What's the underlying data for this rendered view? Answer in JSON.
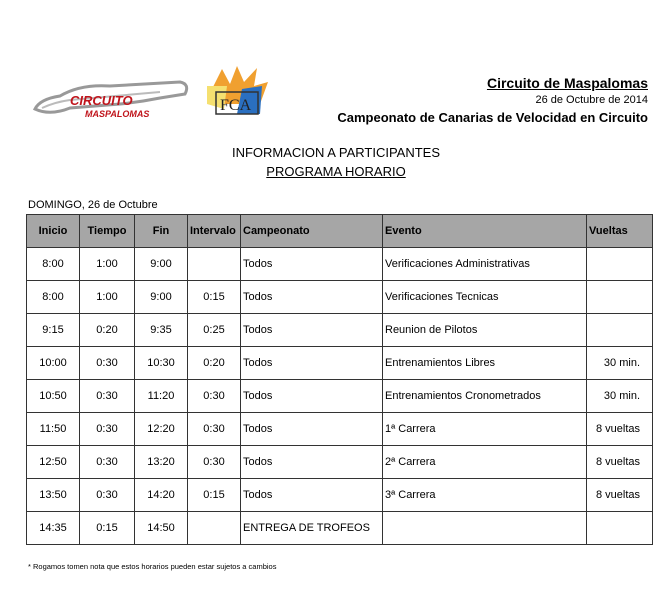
{
  "logos": {
    "circuit": "CIRCUITO MASPALOMAS",
    "federation": "FCA"
  },
  "header": {
    "title": "Circuito de Maspalomas",
    "date": "26 de Octubre de 2014",
    "championship": "Campeonato de Canarias de Velocidad en Circuito"
  },
  "heading": {
    "line1": "INFORMACION A PARTICIPANTES",
    "line2": "PROGRAMA HORARIO"
  },
  "day": "DOMINGO, 26 de Octubre",
  "table": {
    "columns": [
      "Inicio",
      "Tiempo",
      "Fin",
      "Intervalo",
      "Campeonato",
      "Evento",
      "Vueltas"
    ],
    "rows": [
      [
        "8:00",
        "1:00",
        "9:00",
        "",
        "Todos",
        "Verificaciones Administrativas",
        ""
      ],
      [
        "8:00",
        "1:00",
        "9:00",
        "0:15",
        "Todos",
        "Verificaciones Tecnicas",
        ""
      ],
      [
        "9:15",
        "0:20",
        "9:35",
        "0:25",
        "Todos",
        "Reunion de Pilotos",
        ""
      ],
      [
        "10:00",
        "0:30",
        "10:30",
        "0:20",
        "Todos",
        "Entrenamientos Libres",
        "30 min."
      ],
      [
        "10:50",
        "0:30",
        "11:20",
        "0:30",
        "Todos",
        "Entrenamientos Cronometrados",
        "30 min."
      ],
      [
        "11:50",
        "0:30",
        "12:20",
        "0:30",
        "Todos",
        "1ª Carrera",
        "8 vueltas"
      ],
      [
        "12:50",
        "0:30",
        "13:20",
        "0:30",
        "Todos",
        "2ª Carrera",
        "8 vueltas"
      ],
      [
        "13:50",
        "0:30",
        "14:20",
        "0:15",
        "Todos",
        "3ª Carrera",
        "8 vueltas"
      ],
      [
        "14:35",
        "0:15",
        "14:50",
        "",
        "ENTREGA DE TROFEOS",
        "",
        ""
      ]
    ]
  },
  "note": "* Rogamos tomen nota que estos horarios pueden estar sujetos a cambios"
}
